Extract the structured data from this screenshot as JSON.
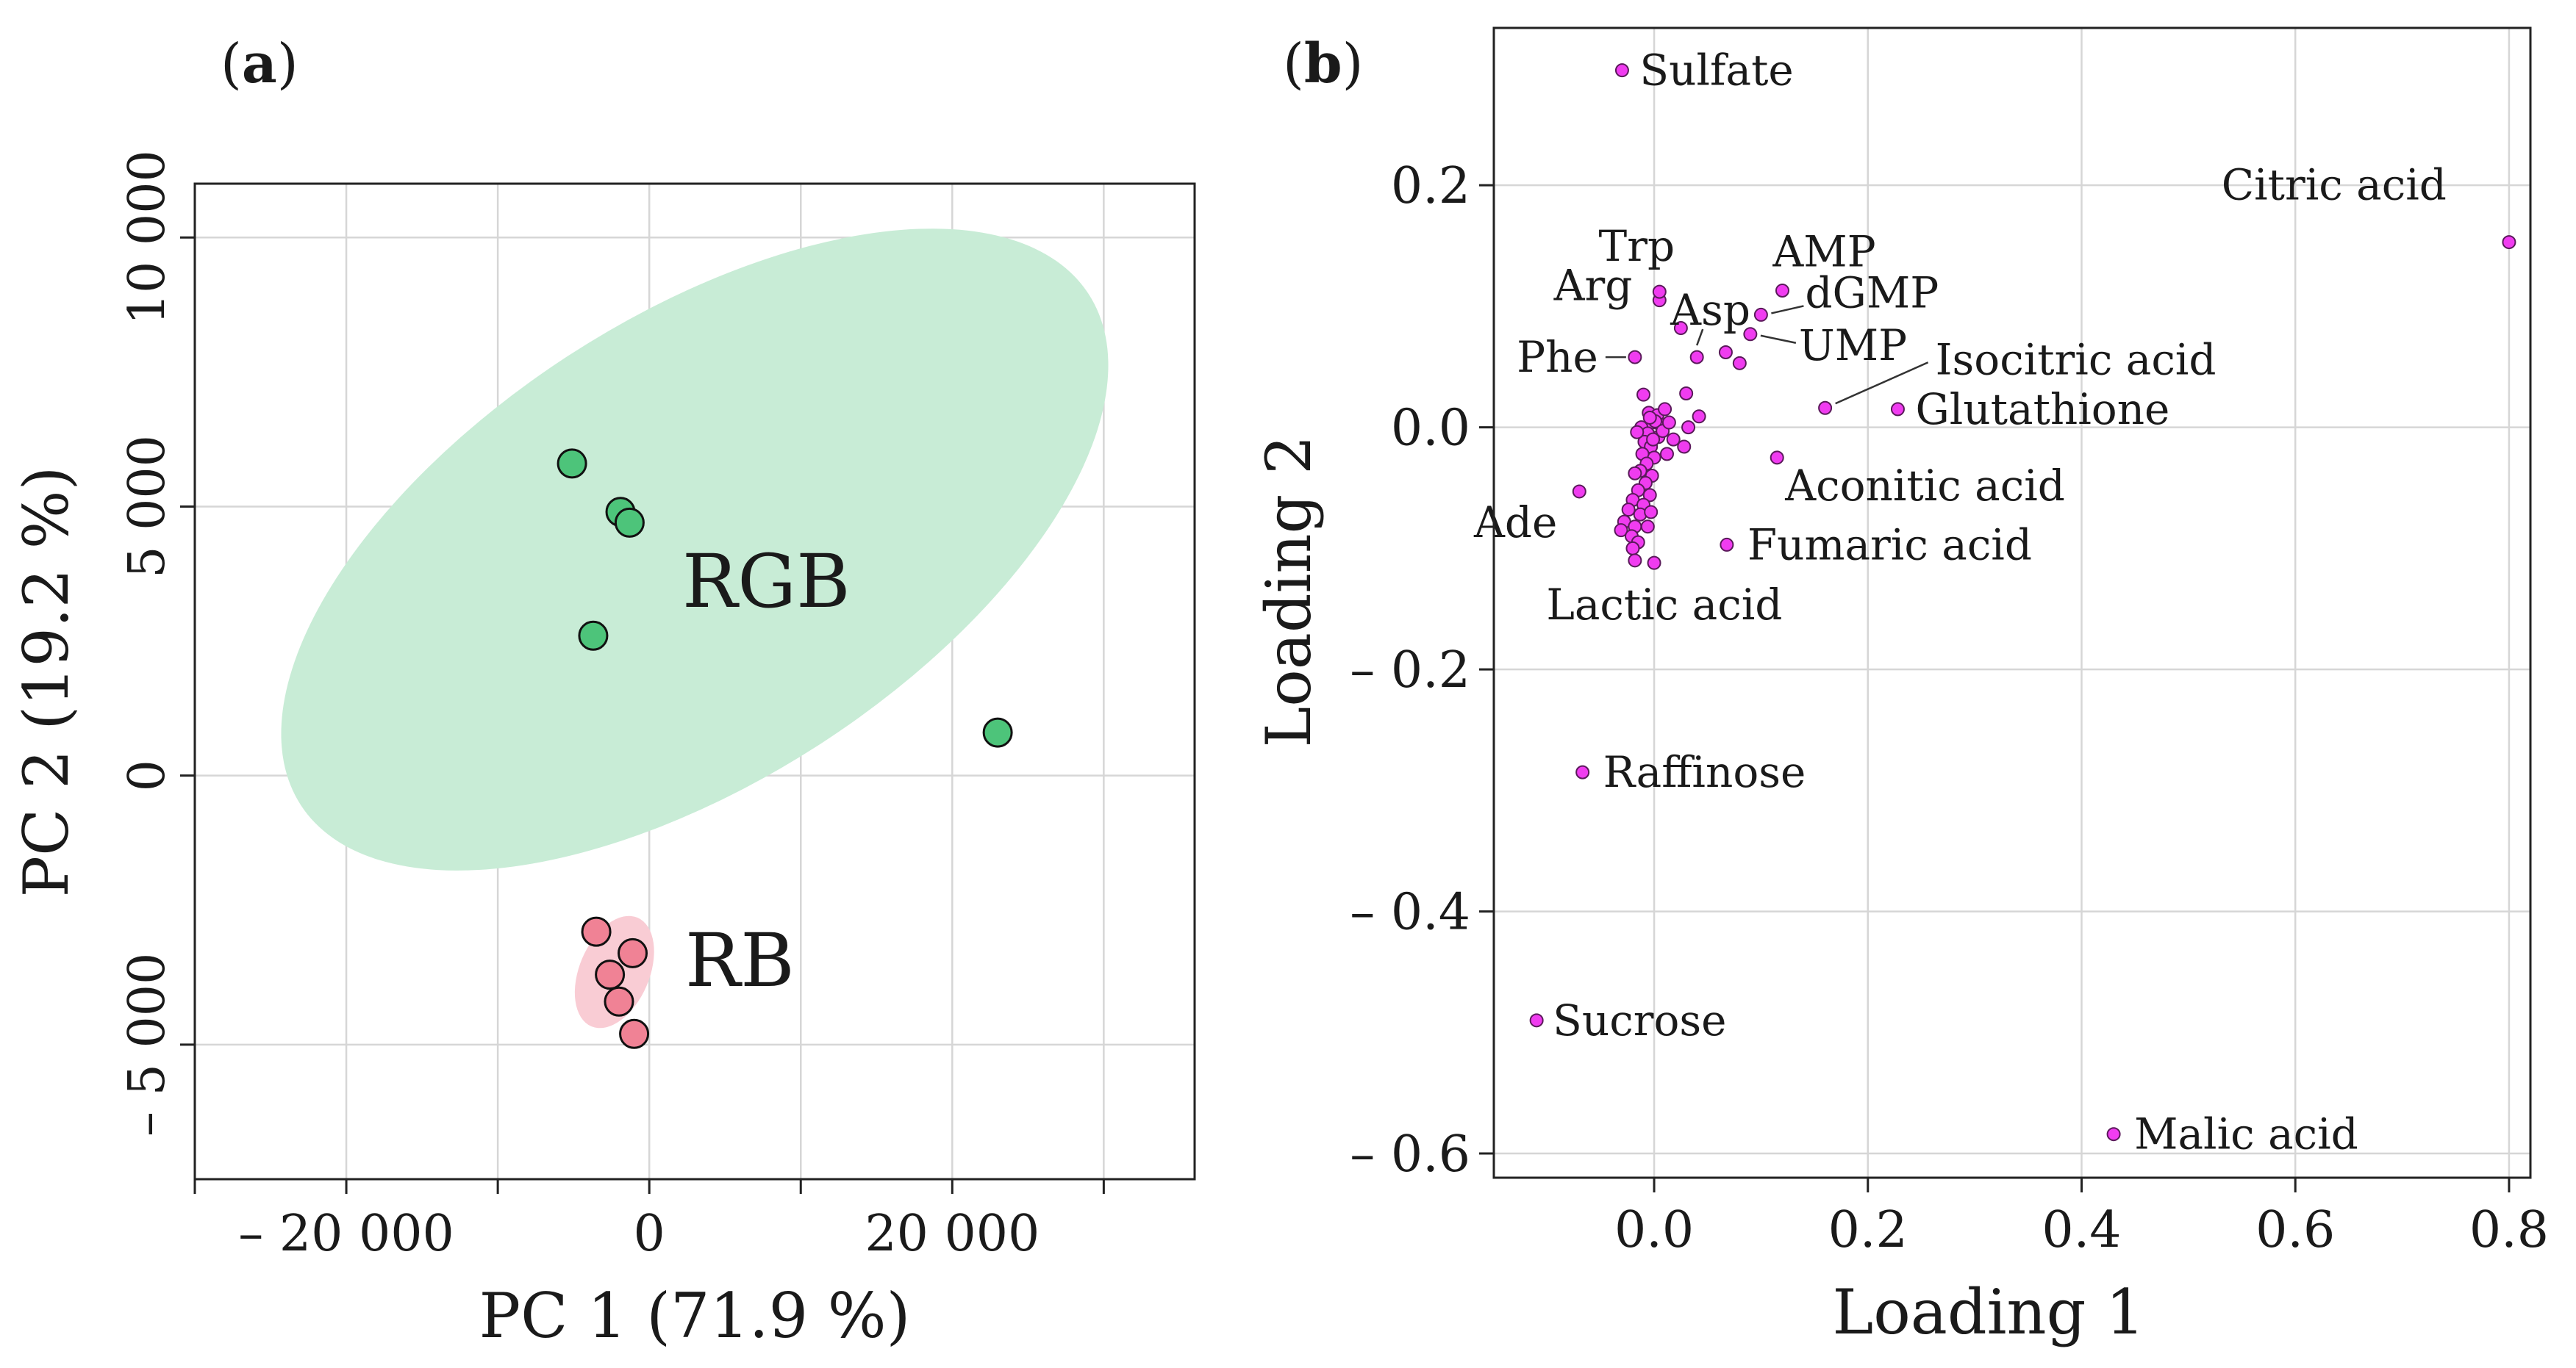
{
  "chart_data": [
    {
      "type": "scatter",
      "panel": "a",
      "panel_label": "a",
      "xlabel": "PC 1 (71.9 %)",
      "ylabel": "PC 2 (19.2 %)",
      "xlim": [
        -30000,
        36000
      ],
      "ylim": [
        -7500,
        11000
      ],
      "x_ticks": [
        {
          "value": -20000,
          "label": "– 20 000"
        },
        {
          "value": 0,
          "label": "0"
        },
        {
          "value": 20000,
          "label": "20 000"
        }
      ],
      "x_minor_ticks": [
        -30000,
        -10000,
        10000,
        30000
      ],
      "y_ticks": [
        {
          "value": -5000,
          "label": "– 5 000"
        },
        {
          "value": 0,
          "label": "0"
        },
        {
          "value": 5000,
          "label": "5 000"
        },
        {
          "value": 10000,
          "label": "10 000"
        }
      ],
      "grid": true,
      "series": [
        {
          "name": "RGB",
          "color": "#4dc47a",
          "ellipse_color": "#c8ecd6",
          "points": [
            {
              "x": -5100,
              "y": 5800
            },
            {
              "x": -1900,
              "y": 4900
            },
            {
              "x": -1300,
              "y": 4700
            },
            {
              "x": -3700,
              "y": 2600
            },
            {
              "x": 23000,
              "y": 800
            }
          ],
          "ellipse": {
            "cx": 3000,
            "cy": 4200,
            "rx": 31000,
            "ry": 4300,
            "angle_deg": 33
          }
        },
        {
          "name": "RB",
          "color": "#f08295",
          "ellipse_color": "#f9ccd4",
          "points": [
            {
              "x": -3500,
              "y": -2900
            },
            {
              "x": -1100,
              "y": -3300
            },
            {
              "x": -2600,
              "y": -3700
            },
            {
              "x": -2000,
              "y": -4200
            },
            {
              "x": -1000,
              "y": -4800
            }
          ],
          "ellipse": {
            "cx": -2300,
            "cy": -3650,
            "rx": 3900,
            "ry": 650,
            "angle_deg": 67
          }
        }
      ]
    },
    {
      "type": "scatter",
      "panel": "b",
      "panel_label": "b",
      "xlabel": "Loading 1",
      "ylabel": "Loading 2",
      "xlim": [
        -0.15,
        0.82
      ],
      "ylim": [
        -0.62,
        0.33
      ],
      "x_ticks": [
        {
          "value": 0,
          "label": "0.0"
        },
        {
          "value": 0.2,
          "label": "0.2"
        },
        {
          "value": 0.4,
          "label": "0.4"
        },
        {
          "value": 0.6,
          "label": "0.6"
        },
        {
          "value": 0.8,
          "label": "0.8"
        }
      ],
      "y_ticks": [
        {
          "value": -0.6,
          "label": "– 0.6"
        },
        {
          "value": -0.4,
          "label": "– 0.4"
        },
        {
          "value": -0.2,
          "label": "– 0.2"
        },
        {
          "value": 0,
          "label": "0.0"
        },
        {
          "value": 0.2,
          "label": "0.2"
        }
      ],
      "grid": true,
      "point_color": "#f03cf0",
      "labeled_points": [
        {
          "name": "Sulfate",
          "x": -0.03,
          "y": 0.295
        },
        {
          "name": "Citric acid",
          "x": 0.8,
          "y": 0.153
        },
        {
          "name": "Trp",
          "x": 0.005,
          "y": 0.112
        },
        {
          "name": "AMP",
          "x": 0.12,
          "y": 0.113
        },
        {
          "name": "Arg",
          "x": 0.025,
          "y": 0.082
        },
        {
          "name": "Asp",
          "x": 0.04,
          "y": 0.058
        },
        {
          "name": "dGMP",
          "x": 0.1,
          "y": 0.093
        },
        {
          "name": "Phe",
          "x": -0.018,
          "y": 0.058
        },
        {
          "name": "UMP",
          "x": 0.09,
          "y": 0.077
        },
        {
          "name": "Isocitric acid",
          "x": 0.16,
          "y": 0.016
        },
        {
          "name": "Glutathione",
          "x": 0.228,
          "y": 0.015
        },
        {
          "name": "Aconitic acid",
          "x": 0.115,
          "y": -0.025
        },
        {
          "name": "Ade",
          "x": -0.07,
          "y": -0.053
        },
        {
          "name": "Fumaric acid",
          "x": 0.068,
          "y": -0.097
        },
        {
          "name": "Lactic acid",
          "x": -0.018,
          "y": -0.11
        },
        {
          "name": "Raffinose",
          "x": -0.067,
          "y": -0.285
        },
        {
          "name": "Sucrose",
          "x": -0.11,
          "y": -0.49
        },
        {
          "name": "Malic acid",
          "x": 0.43,
          "y": -0.584
        }
      ],
      "unlabeled_points": [
        {
          "x": 0.005,
          "y": 0.105
        },
        {
          "x": 0.067,
          "y": 0.062
        },
        {
          "x": 0.08,
          "y": 0.053
        },
        {
          "x": -0.01,
          "y": 0.027
        },
        {
          "x": 0.03,
          "y": 0.028
        },
        {
          "x": 0.042,
          "y": 0.009
        },
        {
          "x": 0.032,
          "y": 0.0
        },
        {
          "x": 0.018,
          "y": -0.01
        },
        {
          "x": 0.028,
          "y": -0.016
        },
        {
          "x": 0.012,
          "y": -0.022
        },
        {
          "x": -0.005,
          "y": 0.012
        },
        {
          "x": 0.003,
          "y": 0.01
        },
        {
          "x": 0.01,
          "y": 0.015
        },
        {
          "x": -0.002,
          "y": 0.004
        },
        {
          "x": 0.006,
          "y": 0.002
        },
        {
          "x": -0.012,
          "y": 0.0
        },
        {
          "x": -0.006,
          "y": -0.005
        },
        {
          "x": 0.004,
          "y": -0.008
        },
        {
          "x": -0.009,
          "y": -0.012
        },
        {
          "x": -0.003,
          "y": -0.016
        },
        {
          "x": -0.011,
          "y": -0.022
        },
        {
          "x": 0.0,
          "y": -0.025
        },
        {
          "x": -0.007,
          "y": -0.03
        },
        {
          "x": -0.013,
          "y": -0.036
        },
        {
          "x": -0.002,
          "y": -0.04
        },
        {
          "x": -0.018,
          "y": -0.038
        },
        {
          "x": -0.008,
          "y": -0.046
        },
        {
          "x": -0.015,
          "y": -0.052
        },
        {
          "x": -0.004,
          "y": -0.056
        },
        {
          "x": -0.02,
          "y": -0.06
        },
        {
          "x": -0.01,
          "y": -0.064
        },
        {
          "x": -0.024,
          "y": -0.068
        },
        {
          "x": -0.013,
          "y": -0.072
        },
        {
          "x": -0.003,
          "y": -0.07
        },
        {
          "x": -0.028,
          "y": -0.078
        },
        {
          "x": -0.018,
          "y": -0.082
        },
        {
          "x": -0.006,
          "y": -0.082
        },
        {
          "x": -0.031,
          "y": -0.085
        },
        {
          "x": -0.021,
          "y": -0.09
        },
        {
          "x": -0.015,
          "y": -0.095
        },
        {
          "x": -0.02,
          "y": -0.1
        },
        {
          "x": 0.0,
          "y": -0.112
        },
        {
          "x": 0.001,
          "y": 0.005
        },
        {
          "x": -0.004,
          "y": 0.008
        },
        {
          "x": 0.008,
          "y": -0.003
        },
        {
          "x": -0.001,
          "y": -0.01
        },
        {
          "x": 0.014,
          "y": 0.004
        },
        {
          "x": -0.016,
          "y": -0.004
        }
      ]
    }
  ]
}
